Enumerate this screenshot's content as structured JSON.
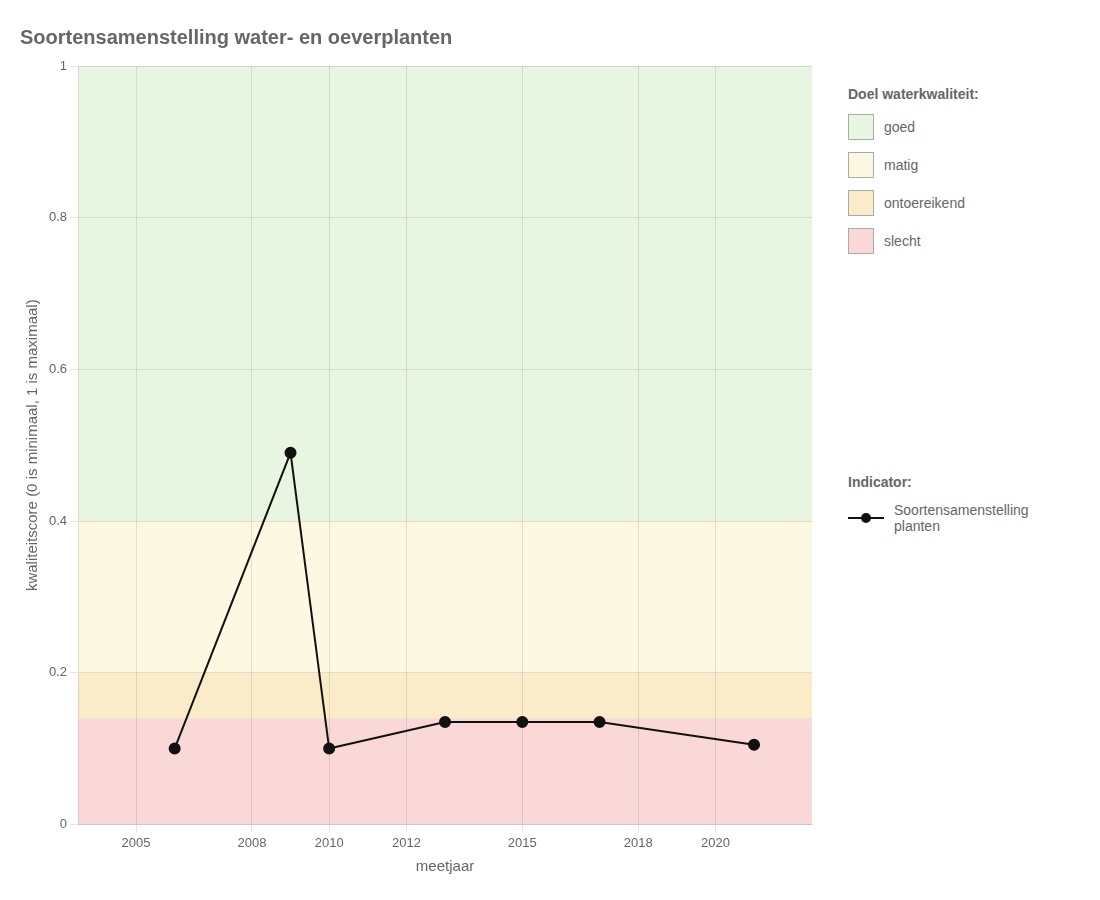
{
  "chart_data": {
    "type": "line",
    "title": "Soortensamenstelling water- en oeverplanten",
    "xlabel": "meetjaar",
    "ylabel": "kwaliteitscore (0 is minimaal, 1 is maximaal)",
    "x": [
      2006,
      2009,
      2010,
      2013,
      2015,
      2017,
      2021
    ],
    "series": [
      {
        "name": "Soortensamenstelling planten",
        "color": "#111111",
        "marker": "circle",
        "line_style": "solid",
        "values": [
          0.1,
          0.49,
          0.1,
          0.135,
          0.135,
          0.135,
          0.105
        ]
      }
    ],
    "xlim": [
      2003.5,
      2022.5
    ],
    "xticks": [
      2005,
      2008,
      2010,
      2012,
      2015,
      2018,
      2020
    ],
    "ylim": [
      0.0,
      1.0
    ],
    "yticks": [
      0.0,
      0.2,
      0.4,
      0.6,
      0.8,
      1.0
    ],
    "zones": [
      {
        "ymin": 0.4,
        "ymax": 1.0,
        "color": "#e8f5e0",
        "label": "goed"
      },
      {
        "ymin": 0.2,
        "ymax": 0.4,
        "color": "#fdf8e1",
        "label": "matig"
      },
      {
        "ymin": 0.14,
        "ymax": 0.2,
        "color": "#faecc8",
        "label": "ontoereikend"
      },
      {
        "ymin": 0.0,
        "ymax": 0.14,
        "color": "#fad8d8",
        "label": "slecht"
      }
    ],
    "zones_title": "Doel waterkwaliteit:",
    "series_title": "Indicator:",
    "grid": true,
    "legend": "right"
  }
}
